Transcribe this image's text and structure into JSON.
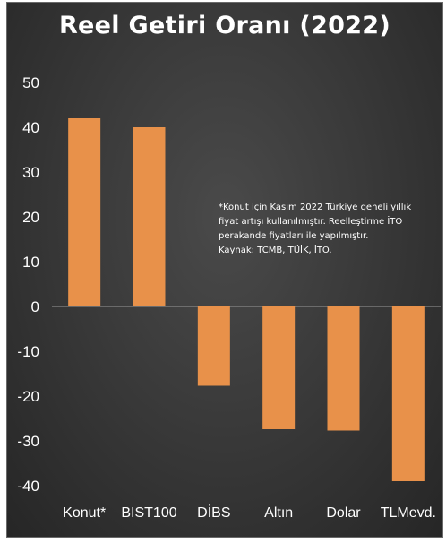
{
  "chart_data": {
    "type": "bar",
    "title": "Reel Getiri Oranı (2022)",
    "categories": [
      "Konut*",
      "BIST100",
      "DİBS",
      "Altın",
      "Dolar",
      "TLMevd."
    ],
    "values": [
      42,
      40,
      -17.7,
      -27.4,
      -27.7,
      -39
    ],
    "ylim": [
      -40,
      50
    ],
    "yticks": [
      50,
      40,
      30,
      20,
      10,
      0,
      -10,
      -20,
      -30,
      -40
    ],
    "xlabel": "",
    "ylabel": "",
    "grid": false,
    "bar_color": "#E8914A",
    "background_color": "#3a3a3a",
    "note_lines": [
      "*Konut için Kasım 2022 Türkiye geneli yıllık",
      "fiyat artışı kullanılmıştır. Reelleştirme İTO",
      "perakande fiyatları ile yapılmıştır.",
      "Kaynak: TCMB, TÜİK, İTO."
    ]
  }
}
